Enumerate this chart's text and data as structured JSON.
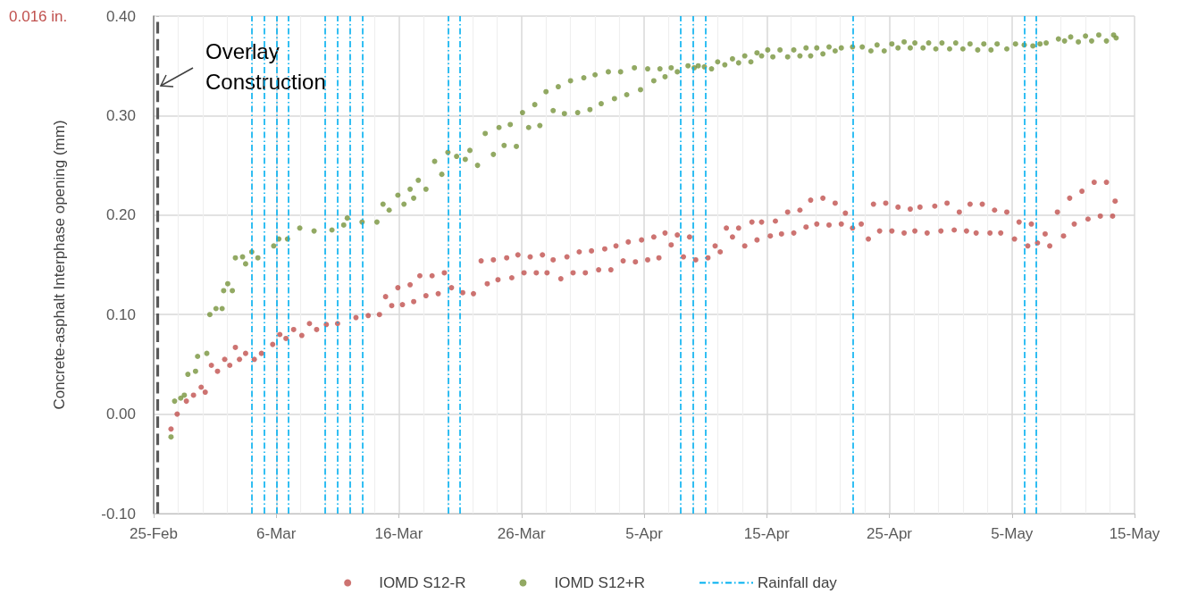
{
  "chart_data": {
    "type": "scatter",
    "ylabel": "Concrete-asphalt Interphase opening (mm)",
    "xlim": [
      "--02-25",
      "--05-15"
    ],
    "xticks": [
      {
        "value": "--02-25",
        "label": "25-Feb"
      },
      {
        "value": "--03-06",
        "label": "6-Mar"
      },
      {
        "value": "--03-16",
        "label": "16-Mar"
      },
      {
        "value": "--03-26",
        "label": "26-Mar"
      },
      {
        "value": "--04-05",
        "label": "5-Apr"
      },
      {
        "value": "--04-15",
        "label": "15-Apr"
      },
      {
        "value": "--04-25",
        "label": "25-Apr"
      },
      {
        "value": "--05-05",
        "label": "5-May"
      },
      {
        "value": "--05-15",
        "label": "15-May"
      }
    ],
    "ylim": [
      -0.1,
      0.4
    ],
    "yticks": [
      {
        "value": -0.1,
        "label": "-0.10"
      },
      {
        "value": 0,
        "label": "0.00"
      },
      {
        "value": 0.1,
        "label": "0.10"
      },
      {
        "value": 0.2,
        "label": "0.20"
      },
      {
        "value": 0.3,
        "label": "0.30"
      },
      {
        "value": 0.4,
        "label": "0.40"
      }
    ],
    "grid": true,
    "legend": "bottom",
    "marker": "circle",
    "series": [
      {
        "name": "IOMD S12-R",
        "color": "#c0504d",
        "x": [
          "--02-26T10:00",
          "--02-26T22:00",
          "--02-27T16:00",
          "--02-28T06:00",
          "--02-28T21:00",
          "--02-29T05:00",
          "--02-29T17:00",
          "--03-01T05:00",
          "--03-01T19:00",
          "--03-02T05:00",
          "--03-02T16:00",
          "--03-03T00:00",
          "--03-03T12:00",
          "--03-04T05:00",
          "--03-04T19:00",
          "--03-05T17:00",
          "--03-06T07:00",
          "--03-06T19:00",
          "--03-07T10:00",
          "--03-08T02:00",
          "--03-08T17:00",
          "--03-09T07:00",
          "--03-10T02:00",
          "--03-11T00:00",
          "--03-12T12:00",
          "--03-13T12:00",
          "--03-14T10:00",
          "--03-14T22:00",
          "--03-15T10:00",
          "--03-15T22:00",
          "--03-16T07:00",
          "--03-16T22:00",
          "--03-17T05:00",
          "--03-17T17:00",
          "--03-18T05:00",
          "--03-18T17:00",
          "--03-19T05:00",
          "--03-19T17:00",
          "--03-20T07:00",
          "--03-21T05:00",
          "--03-22T02:00",
          "--03-22T17:00",
          "--03-23T05:00",
          "--03-23T17:00",
          "--03-24T02:00",
          "--03-24T19:00",
          "--03-25T05:00",
          "--03-25T17:00",
          "--03-26T05:00",
          "--03-26T17:00",
          "--03-27T05:00",
          "--03-27T17:00",
          "--03-28T02:00",
          "--03-28T14:00",
          "--03-29T05:00",
          "--03-29T17:00",
          "--03-30T05:00",
          "--03-30T17:00",
          "--03-31T05:00",
          "--03-31T17:00",
          "--04-01T07:00",
          "--04-01T19:00",
          "--04-02T07:00",
          "--04-02T17:00",
          "--04-03T07:00",
          "--04-03T17:00",
          "--04-04T07:00",
          "--04-04T19:00",
          "--04-05T07:00",
          "--04-05T19:00",
          "--04-06T05:00",
          "--04-06T17:00",
          "--04-07T05:00",
          "--04-07T17:00",
          "--04-08T05:00",
          "--04-08T17:00",
          "--04-09T05:00",
          "--04-10T05:00",
          "--04-10T19:00",
          "--04-11T05:00",
          "--04-11T17:00",
          "--04-12T05:00",
          "--04-12T17:00",
          "--04-13T05:00",
          "--04-13T19:00",
          "--04-14T05:00",
          "--04-14T14:00",
          "--04-15T07:00",
          "--04-15T17:00",
          "--04-16T05:00",
          "--04-16T17:00",
          "--04-17T05:00",
          "--04-17T17:00",
          "--04-18T05:00",
          "--04-18T14:00",
          "--04-19T02:00",
          "--04-19T14:00",
          "--04-20T02:00",
          "--04-20T14:00",
          "--04-21T02:00",
          "--04-21T10:00",
          "--04-22T00:00",
          "--04-22T17:00",
          "--04-23T07:00",
          "--04-23T17:00",
          "--04-24T05:00",
          "--04-24T17:00",
          "--04-25T05:00",
          "--04-25T17:00",
          "--04-26T05:00",
          "--04-26T17:00",
          "--04-27T02:00",
          "--04-27T12:00",
          "--04-28T02:00",
          "--04-28T17:00",
          "--04-29T05:00",
          "--04-29T17:00",
          "--04-30T07:00",
          "--04-30T17:00",
          "--05-01T07:00",
          "--05-01T14:00",
          "--05-02T02:00",
          "--05-02T14:00",
          "--05-03T05:00",
          "--05-03T14:00",
          "--05-04T02:00",
          "--05-04T14:00",
          "--05-05T05:00",
          "--05-05T14:00",
          "--05-06T07:00",
          "--05-06T14:00",
          "--05-07T02:00",
          "--05-07T17:00",
          "--05-08T02:00",
          "--05-08T17:00",
          "--05-09T05:00",
          "--05-09T17:00",
          "--05-10T02:00",
          "--05-10T17:00",
          "--05-11T05:00",
          "--05-11T17:00",
          "--05-12T05:00",
          "--05-12T17:00",
          "--05-13T05:00",
          "--05-13T10:00"
        ],
        "values": [
          -0.015,
          0.0,
          0.013,
          0.019,
          0.027,
          0.022,
          0.049,
          0.043,
          0.055,
          0.049,
          0.067,
          0.055,
          0.061,
          0.055,
          0.061,
          0.07,
          0.08,
          0.076,
          0.085,
          0.079,
          0.091,
          0.085,
          0.09,
          0.091,
          0.097,
          0.099,
          0.1,
          0.118,
          0.109,
          0.127,
          0.11,
          0.13,
          0.113,
          0.139,
          0.119,
          0.139,
          0.121,
          0.142,
          0.127,
          0.122,
          0.121,
          0.154,
          0.131,
          0.155,
          0.135,
          0.157,
          0.137,
          0.16,
          0.142,
          0.158,
          0.142,
          0.16,
          0.142,
          0.155,
          0.136,
          0.158,
          0.142,
          0.163,
          0.142,
          0.164,
          0.145,
          0.166,
          0.145,
          0.169,
          0.154,
          0.173,
          0.153,
          0.175,
          0.155,
          0.178,
          0.157,
          0.182,
          0.17,
          0.18,
          0.158,
          0.178,
          0.155,
          0.157,
          0.169,
          0.163,
          0.187,
          0.178,
          0.187,
          0.169,
          0.193,
          0.175,
          0.193,
          0.179,
          0.194,
          0.181,
          0.203,
          0.182,
          0.205,
          0.188,
          0.215,
          0.191,
          0.217,
          0.19,
          0.212,
          0.191,
          0.202,
          0.187,
          0.191,
          0.176,
          0.211,
          0.184,
          0.212,
          0.184,
          0.208,
          0.182,
          0.206,
          0.184,
          0.208,
          0.182,
          0.209,
          0.184,
          0.212,
          0.185,
          0.203,
          0.184,
          0.211,
          0.182,
          0.211,
          0.182,
          0.205,
          0.182,
          0.203,
          0.176,
          0.193,
          0.169,
          0.191,
          0.172,
          0.181,
          0.169,
          0.203,
          0.179,
          0.217,
          0.191,
          0.224,
          0.196,
          0.233,
          0.199,
          0.233,
          0.199,
          0.214
        ]
      },
      {
        "name": "IOMD S12+R",
        "color": "#77933c",
        "x": [
          "--02-26T10:00",
          "--02-26T17:00",
          "--02-27T05:00",
          "--02-27T12:00",
          "--02-27T19:00",
          "--02-28T10:00",
          "--02-28T14:00",
          "--02-29T08:00",
          "--02-29T14:00",
          "--03-01T02:00",
          "--03-01T14:00",
          "--03-01T17:00",
          "--03-02T01:00",
          "--03-02T10:00",
          "--03-02T16:00",
          "--03-03T06:00",
          "--03-03T12:00",
          "--03-04T00:00",
          "--03-04T12:00",
          "--03-05T19:00",
          "--03-06T05:00",
          "--03-06T22:00",
          "--03-07T22:00",
          "--03-09T02:00",
          "--03-10T13:00",
          "--03-11T12:00",
          "--03-11T19:00",
          "--03-13T00:00",
          "--03-14T05:00",
          "--03-14T17:00",
          "--03-15T05:00",
          "--03-15T22:00",
          "--03-16T10:00",
          "--03-16T22:00",
          "--03-17T05:00",
          "--03-17T14:00",
          "--03-18T05:00",
          "--03-18T22:00",
          "--03-19T12:00",
          "--03-20T00:00",
          "--03-20T17:00",
          "--03-21T10:00",
          "--03-21T19:00",
          "--03-22T10:00",
          "--03-23T01:00",
          "--03-23T17:00",
          "--03-24T04:00",
          "--03-24T14:00",
          "--03-25T02:00",
          "--03-25T14:00",
          "--03-26T02:00",
          "--03-26T14:00",
          "--03-27T02:00",
          "--03-27T12:00",
          "--03-28T00:00",
          "--03-28T14:00",
          "--03-29T00:00",
          "--03-29T12:00",
          "--03-30T00:00",
          "--03-30T14:00",
          "--03-31T02:00",
          "--03-31T14:00",
          "--04-01T00:00",
          "--04-01T12:00",
          "--04-02T02:00",
          "--04-02T14:00",
          "--04-03T02:00",
          "--04-03T14:00",
          "--04-04T05:00",
          "--04-04T17:00",
          "--04-05T07:00",
          "--04-05T19:00",
          "--04-06T07:00",
          "--04-06T17:00",
          "--04-07T05:00",
          "--04-07T17:00",
          "--04-08T14:00",
          "--04-09T02:00",
          "--04-09T10:00",
          "--04-09T22:00",
          "--04-10T12:00",
          "--04-11T00:00",
          "--04-11T14:00",
          "--04-12T05:00",
          "--04-12T17:00",
          "--04-13T05:00",
          "--04-13T17:00",
          "--04-14T05:00",
          "--04-14T14:00",
          "--04-15T02:00",
          "--04-15T12:00",
          "--04-16T02:00",
          "--04-16T17:00",
          "--04-17T05:00",
          "--04-17T17:00",
          "--04-18T05:00",
          "--04-18T14:00",
          "--04-19T02:00",
          "--04-19T14:00",
          "--04-20T02:00",
          "--04-20T14:00",
          "--04-21T02:00",
          "--04-22T00:00",
          "--04-22T19:00",
          "--04-23T12:00",
          "--04-24T00:00",
          "--04-24T14:00",
          "--04-25T05:00",
          "--04-25T17:00",
          "--04-26T05:00",
          "--04-26T17:00",
          "--04-27T02:00",
          "--04-27T18:00",
          "--04-28T05:00",
          "--04-28T19:00",
          "--04-29T07:00",
          "--04-29T22:00",
          "--04-30T10:00",
          "--05-01T00:00",
          "--05-01T14:00",
          "--05-02T05:00",
          "--05-02T17:00",
          "--05-03T07:00",
          "--05-03T19:00",
          "--05-04T14:00",
          "--05-05T07:00",
          "--05-06T00:00",
          "--05-06T17:00",
          "--05-07T07:00",
          "--05-07T19:00",
          "--05-08T19:00",
          "--05-09T07:00",
          "--05-09T19:00",
          "--05-10T10:00",
          "--05-11T00:00",
          "--05-11T12:00",
          "--05-12T02:00",
          "--05-12T17:00",
          "--05-13T07:00",
          "--05-13T12:00"
        ],
        "values": [
          -0.023,
          0.013,
          0.016,
          0.019,
          0.04,
          0.043,
          0.058,
          0.061,
          0.1,
          0.106,
          0.106,
          0.124,
          0.131,
          0.124,
          0.157,
          0.158,
          0.151,
          0.163,
          0.157,
          0.169,
          0.176,
          0.176,
          0.187,
          0.184,
          0.185,
          0.19,
          0.197,
          0.193,
          0.193,
          0.211,
          0.205,
          0.22,
          0.211,
          0.226,
          0.217,
          0.235,
          0.226,
          0.254,
          0.241,
          0.263,
          0.259,
          0.256,
          0.265,
          0.25,
          0.282,
          0.261,
          0.288,
          0.27,
          0.291,
          0.269,
          0.303,
          0.288,
          0.311,
          0.29,
          0.324,
          0.305,
          0.329,
          0.302,
          0.335,
          0.303,
          0.338,
          0.306,
          0.341,
          0.312,
          0.344,
          0.317,
          0.344,
          0.321,
          0.348,
          0.326,
          0.347,
          0.335,
          0.347,
          0.339,
          0.348,
          0.344,
          0.35,
          0.348,
          0.35,
          0.349,
          0.347,
          0.354,
          0.351,
          0.357,
          0.353,
          0.36,
          0.354,
          0.363,
          0.36,
          0.366,
          0.359,
          0.366,
          0.359,
          0.366,
          0.36,
          0.368,
          0.36,
          0.368,
          0.362,
          0.369,
          0.365,
          0.368,
          0.369,
          0.369,
          0.365,
          0.371,
          0.365,
          0.372,
          0.368,
          0.374,
          0.368,
          0.373,
          0.368,
          0.373,
          0.367,
          0.373,
          0.367,
          0.373,
          0.367,
          0.372,
          0.366,
          0.372,
          0.366,
          0.372,
          0.367,
          0.372,
          0.371,
          0.37,
          0.372,
          0.373,
          0.377,
          0.375,
          0.379,
          0.374,
          0.38,
          0.375,
          0.381,
          0.375,
          0.381,
          0.378
        ]
      }
    ],
    "ref_lines": [
      {
        "axis": "x",
        "value": "--02-25T07:00",
        "color": "#595959",
        "line_style": "dashed"
      },
      {
        "axis": "x",
        "value": "--03-04",
        "label": "Rainfall day",
        "color": "#00b0f0",
        "line_style": "dashed"
      },
      {
        "axis": "x",
        "value": "--03-05",
        "color": "#00b0f0",
        "line_style": "dashed"
      },
      {
        "axis": "x",
        "value": "--03-06",
        "color": "#00b0f0",
        "line_style": "dashed"
      },
      {
        "axis": "x",
        "value": "--03-07",
        "color": "#00b0f0",
        "line_style": "dashed"
      },
      {
        "axis": "x",
        "value": "--03-10",
        "color": "#00b0f0",
        "line_style": "dashed"
      },
      {
        "axis": "x",
        "value": "--03-11",
        "color": "#00b0f0",
        "line_style": "dashed"
      },
      {
        "axis": "x",
        "value": "--03-12",
        "color": "#00b0f0",
        "line_style": "dashed"
      },
      {
        "axis": "x",
        "value": "--03-13",
        "color": "#00b0f0",
        "line_style": "dashed"
      },
      {
        "axis": "x",
        "value": "--03-20",
        "color": "#00b0f0",
        "line_style": "dashed"
      },
      {
        "axis": "x",
        "value": "--03-21",
        "color": "#00b0f0",
        "line_style": "dashed"
      },
      {
        "axis": "x",
        "value": "--04-08",
        "color": "#00b0f0",
        "line_style": "dashed"
      },
      {
        "axis": "x",
        "value": "--04-09",
        "color": "#00b0f0",
        "line_style": "dashed"
      },
      {
        "axis": "x",
        "value": "--04-10",
        "color": "#00b0f0",
        "line_style": "dashed"
      },
      {
        "axis": "x",
        "value": "--04-22",
        "color": "#00b0f0",
        "line_style": "dashed"
      },
      {
        "axis": "x",
        "value": "--05-06",
        "color": "#00b0f0",
        "line_style": "dashed"
      },
      {
        "axis": "x",
        "value": "--05-07",
        "color": "#00b0f0",
        "line_style": "dashed"
      }
    ],
    "annotations": [
      "0.016 in.",
      {
        "text": "Overlay Construction",
        "x": "--02-25T07:00",
        "y": 0.33
      }
    ]
  }
}
